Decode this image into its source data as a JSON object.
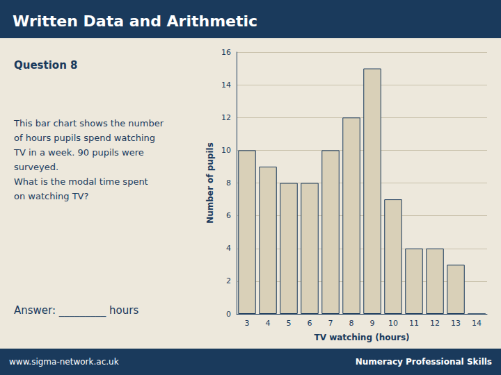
{
  "chart_data": {
    "type": "bar",
    "title": "Written Data and Arithmetic",
    "annotations": [
      "Question 8",
      "This bar chart shows the number",
      "of hours pupils spend watching",
      "TV in a week. 90 pupils were",
      "surveyed.",
      "What is the modal time spent",
      "on watching TV?",
      "Answer: _________ hours",
      "www.sigma-network.ac.uk",
      "Numeracy Professional Skills"
    ],
    "categories": [
      3,
      4,
      5,
      6,
      7,
      8,
      9,
      10,
      11,
      12,
      13,
      14
    ],
    "values": [
      10,
      9,
      8,
      8,
      10,
      12,
      15,
      7,
      4,
      4,
      3,
      0
    ],
    "xlabel": "TV watching (hours)",
    "ylabel": "Number of pupils",
    "ylim": [
      0,
      16
    ],
    "yticks": [
      0,
      2,
      4,
      6,
      8,
      10,
      12,
      14,
      16
    ],
    "color": "#d9d0b8",
    "grid": true
  }
}
